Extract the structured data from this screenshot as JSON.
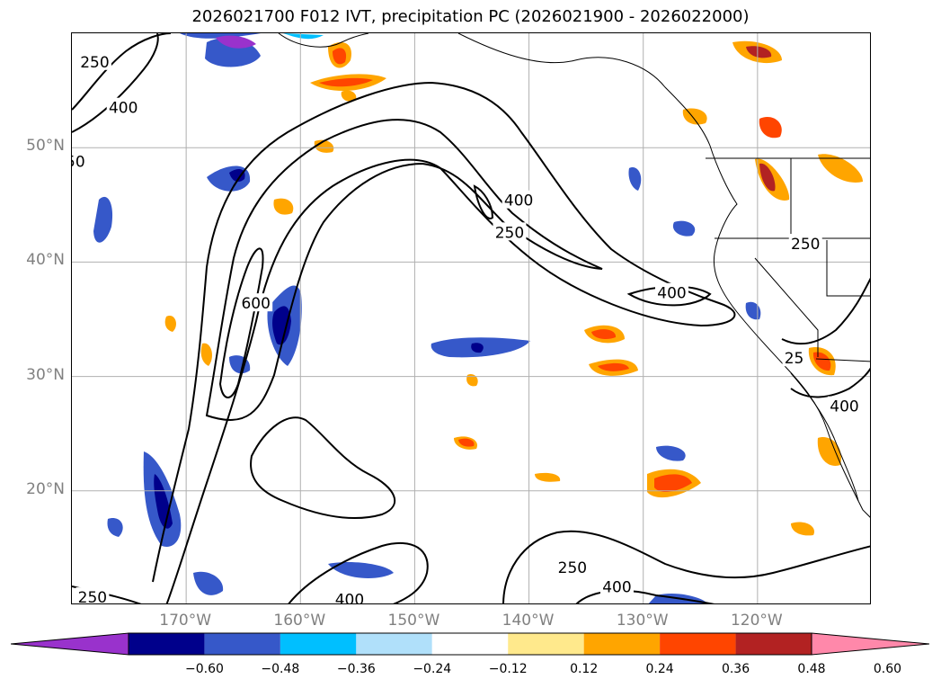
{
  "title": "2026021700 F012 IVT, precipitation PC (2026021900 - 2026022000)",
  "map": {
    "lon_range": [
      -180,
      -110
    ],
    "lat_range": [
      10,
      60
    ],
    "lat_ticks": [
      {
        "value": 50,
        "label": "50°N"
      },
      {
        "value": 40,
        "label": "40°N"
      },
      {
        "value": 30,
        "label": "30°N"
      },
      {
        "value": 20,
        "label": "20°N"
      }
    ],
    "lon_ticks": [
      {
        "value": -170,
        "label": "170°W"
      },
      {
        "value": -160,
        "label": "160°W"
      },
      {
        "value": -150,
        "label": "150°W"
      },
      {
        "value": -140,
        "label": "140°W"
      },
      {
        "value": -130,
        "label": "130°W"
      },
      {
        "value": -120,
        "label": "120°W"
      }
    ],
    "gridlines": true,
    "ivt_contour_levels": [
      "250",
      "400",
      "600"
    ],
    "contour_labels": [
      {
        "text": "250",
        "lon": -178,
        "lat": 57.5
      },
      {
        "text": "400",
        "lon": -175.5,
        "lat": 53.5
      },
      {
        "text": "50",
        "lon": -179.7,
        "lat": 48.8
      },
      {
        "text": "400",
        "lon": -140.9,
        "lat": 45.4
      },
      {
        "text": "250",
        "lon": -141.7,
        "lat": 42.6
      },
      {
        "text": "400",
        "lon": -127.5,
        "lat": 37.3
      },
      {
        "text": "600",
        "lon": -163.9,
        "lat": 36.4
      },
      {
        "text": "250",
        "lon": -115.8,
        "lat": 41.6
      },
      {
        "text": "25",
        "lon": -116.8,
        "lat": 31.6
      },
      {
        "text": "400",
        "lon": -112.4,
        "lat": 27.4
      },
      {
        "text": "250",
        "lon": -136.2,
        "lat": 13.3
      },
      {
        "text": "400",
        "lon": -132.3,
        "lat": 11.6
      },
      {
        "text": "400",
        "lon": -155.7,
        "lat": 10.5
      },
      {
        "text": "250",
        "lon": -178.2,
        "lat": 10.7
      }
    ]
  },
  "colorbar": {
    "extend": "both",
    "bounds": [
      -0.6,
      -0.48,
      -0.36,
      -0.24,
      -0.12,
      0.12,
      0.24,
      0.36,
      0.48,
      0.6
    ],
    "tick_labels": [
      "−0.60",
      "−0.48",
      "−0.36",
      "−0.24",
      "−0.12",
      "0.12",
      "0.24",
      "0.36",
      "0.48",
      "0.60"
    ],
    "colors": [
      "#9932cc",
      "#00008b",
      "#3658c9",
      "#00bfff",
      "#b0e0fa",
      "#ffffff",
      "#ffe98c",
      "#ffa500",
      "#ff4500",
      "#b22222",
      "#ff88aa"
    ]
  }
}
